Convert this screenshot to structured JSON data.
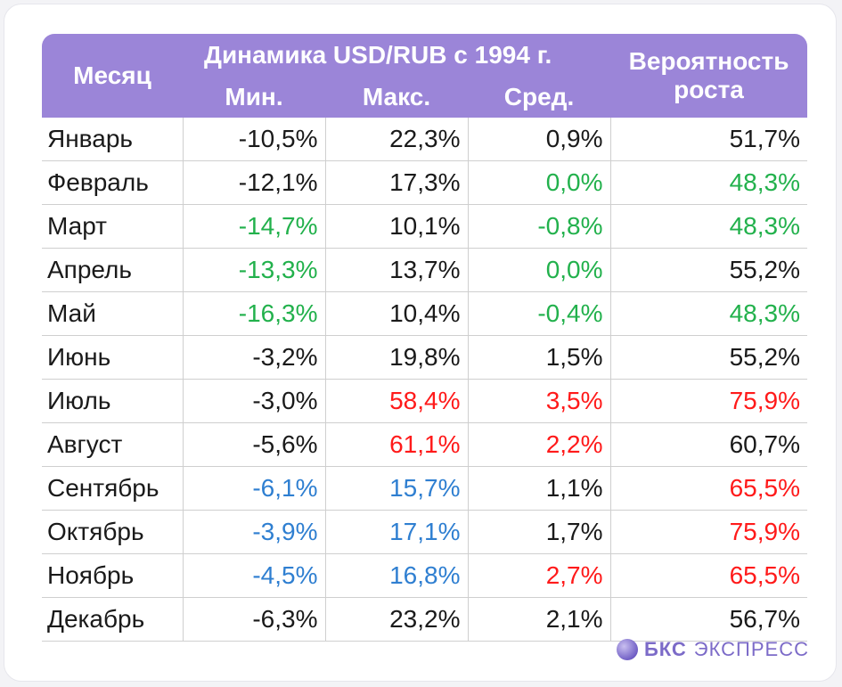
{
  "header": {
    "month": "Месяц",
    "group": "Динамика USD/RUB с 1994 г.",
    "min": "Мин.",
    "max": "Макс.",
    "avg": "Сред.",
    "prob_line1": "Вероятность",
    "prob_line2": "роста"
  },
  "rows": [
    {
      "month": "Январь",
      "min": "-10,5%",
      "max": "22,3%",
      "avg": "0,9%",
      "prob": "51,7%",
      "colors": [
        "black",
        "black",
        "black",
        "black"
      ]
    },
    {
      "month": "Февраль",
      "min": "-12,1%",
      "max": "17,3%",
      "avg": "0,0%",
      "prob": "48,3%",
      "colors": [
        "black",
        "black",
        "green",
        "green"
      ]
    },
    {
      "month": "Март",
      "min": "-14,7%",
      "max": "10,1%",
      "avg": "-0,8%",
      "prob": "48,3%",
      "colors": [
        "green",
        "black",
        "green",
        "green"
      ]
    },
    {
      "month": "Апрель",
      "min": "-13,3%",
      "max": "13,7%",
      "avg": "0,0%",
      "prob": "55,2%",
      "colors": [
        "green",
        "black",
        "green",
        "black"
      ]
    },
    {
      "month": "Май",
      "min": "-16,3%",
      "max": "10,4%",
      "avg": "-0,4%",
      "prob": "48,3%",
      "colors": [
        "green",
        "black",
        "green",
        "green"
      ]
    },
    {
      "month": "Июнь",
      "min": "-3,2%",
      "max": "19,8%",
      "avg": "1,5%",
      "prob": "55,2%",
      "colors": [
        "black",
        "black",
        "black",
        "black"
      ]
    },
    {
      "month": "Июль",
      "min": "-3,0%",
      "max": "58,4%",
      "avg": "3,5%",
      "prob": "75,9%",
      "colors": [
        "black",
        "red",
        "red",
        "red"
      ]
    },
    {
      "month": "Август",
      "min": "-5,6%",
      "max": "61,1%",
      "avg": "2,2%",
      "prob": "60,7%",
      "colors": [
        "black",
        "red",
        "red",
        "black"
      ]
    },
    {
      "month": "Сентябрь",
      "min": "-6,1%",
      "max": "15,7%",
      "avg": "1,1%",
      "prob": "65,5%",
      "colors": [
        "blue",
        "blue",
        "black",
        "red"
      ]
    },
    {
      "month": "Октябрь",
      "min": "-3,9%",
      "max": "17,1%",
      "avg": "1,7%",
      "prob": "75,9%",
      "colors": [
        "blue",
        "blue",
        "black",
        "red"
      ]
    },
    {
      "month": "Ноябрь",
      "min": "-4,5%",
      "max": "16,8%",
      "avg": "2,7%",
      "prob": "65,5%",
      "colors": [
        "blue",
        "blue",
        "red",
        "red"
      ]
    },
    {
      "month": "Декабрь",
      "min": "-6,3%",
      "max": "23,2%",
      "avg": "2,1%",
      "prob": "56,7%",
      "colors": [
        "black",
        "black",
        "black",
        "black"
      ]
    }
  ],
  "colors": {
    "header_bg": "#9b85d8",
    "black": "#1a1a1a",
    "green": "#22b14c",
    "red": "#ff1a1a",
    "blue": "#2f7fd1",
    "brand": "#7c6bc8"
  },
  "logo": {
    "bold": "БКС",
    "rest": "ЭКСПРЕСС",
    "icon": "bks-sphere-icon"
  }
}
